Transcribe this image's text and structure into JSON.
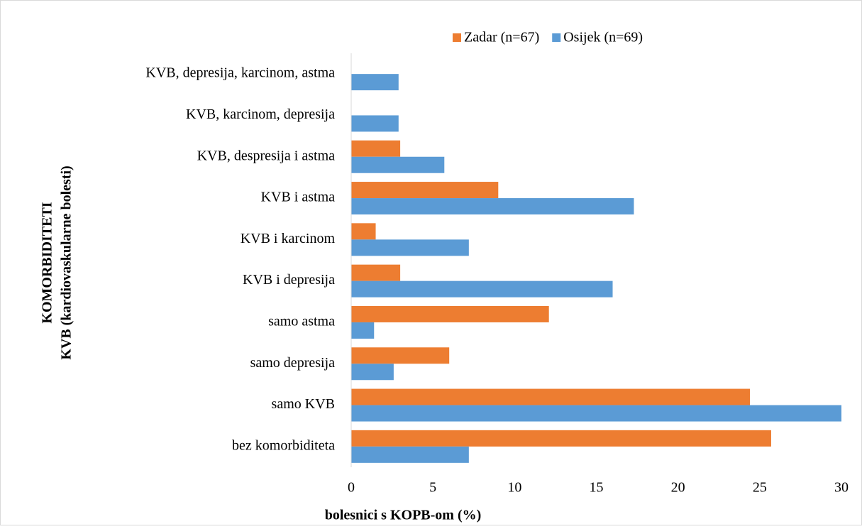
{
  "chart_data": {
    "type": "barh",
    "xlabel": "bolesnici s KOPB-om (%)",
    "ylabel": [
      "KOMORBIDITETI",
      "KVB (kardiovaskularne bolesti)"
    ],
    "categories": [
      "KVB, depresija, karcinom, astma",
      "KVB, karcinom, depresija",
      "KVB, despresija i astma",
      "KVB i astma",
      "KVB i karcinom",
      "KVB i depresija",
      "samo astma",
      "samo depresija",
      "samo KVB",
      "bez komorbiditeta"
    ],
    "series": [
      {
        "name": "Zadar (n=67)",
        "color": "#ed7d31",
        "values": [
          0,
          0,
          3.0,
          9.0,
          1.5,
          3.0,
          12.1,
          6.0,
          24.4,
          25.7
        ]
      },
      {
        "name": "Osijek (n=69)",
        "color": "#5b9bd5",
        "values": [
          2.9,
          2.9,
          5.7,
          17.3,
          7.2,
          16.0,
          1.4,
          2.6,
          30.0,
          7.2
        ]
      }
    ],
    "xlim": [
      0,
      30
    ],
    "xticks": [
      0,
      5,
      10,
      15,
      20,
      25,
      30
    ],
    "grid": false,
    "legend": "top"
  }
}
